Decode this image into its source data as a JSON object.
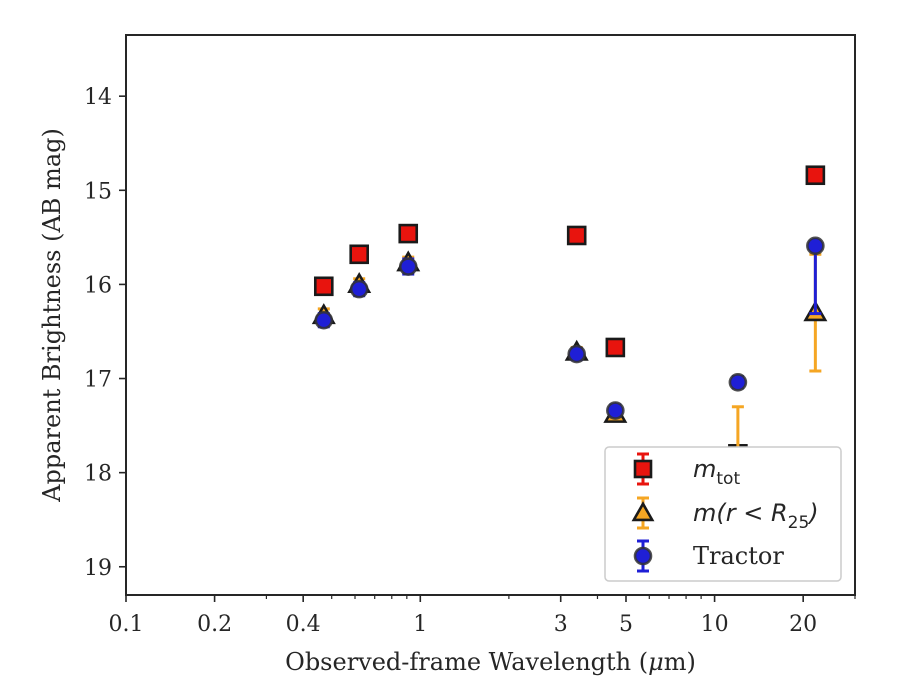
{
  "chart_data": {
    "type": "scatter",
    "xlabel_prefix": "Observed-frame Wavelength (",
    "xlabel_unit_mu": "μ",
    "xlabel_unit_rest": "m)",
    "ylabel": "Apparent Brightness (AB mag)",
    "x_scale": "log",
    "xlim": [
      0.1,
      30
    ],
    "ylim": [
      19.3,
      13.35
    ],
    "y_inverted": true,
    "x_ticks": [
      {
        "value": 0.1,
        "label": "0.1"
      },
      {
        "value": 0.2,
        "label": "0.2"
      },
      {
        "value": 0.4,
        "label": "0.4"
      },
      {
        "value": 1,
        "label": "1"
      },
      {
        "value": 3,
        "label": "3"
      },
      {
        "value": 5,
        "label": "5"
      },
      {
        "value": 10,
        "label": "10"
      },
      {
        "value": 20,
        "label": "20"
      }
    ],
    "y_ticks": [
      {
        "value": 14,
        "label": "14"
      },
      {
        "value": 15,
        "label": "15"
      },
      {
        "value": 16,
        "label": "16"
      },
      {
        "value": 17,
        "label": "17"
      },
      {
        "value": 18,
        "label": "18"
      },
      {
        "value": 19,
        "label": "19"
      }
    ],
    "grid": false,
    "legend_position": "bottom-right",
    "series": [
      {
        "name": "m_tot",
        "legend_main": "m",
        "legend_sub": "tot",
        "marker": "square",
        "color": "#e8140e",
        "edge_color": "#1a1a1a",
        "points": [
          {
            "x": 0.47,
            "y": 16.02,
            "err": 0.06
          },
          {
            "x": 0.62,
            "y": 15.68,
            "err": 0.06
          },
          {
            "x": 0.91,
            "y": 15.46,
            "err": 0.06
          },
          {
            "x": 3.4,
            "y": 15.48,
            "err": 0.05
          },
          {
            "x": 4.6,
            "y": 16.67,
            "err": 0.05
          },
          {
            "x": 12.0,
            "y": 17.8,
            "err": 0.08
          },
          {
            "x": 22.0,
            "y": 14.84,
            "err": 0.08
          }
        ]
      },
      {
        "name": "m(r < R_25)",
        "legend_main": "m(r < R",
        "legend_sub": "25",
        "legend_tail": ")",
        "marker": "triangle",
        "color": "#f5a623",
        "edge_color": "#1a1a1a",
        "points": [
          {
            "x": 0.47,
            "y": 16.33,
            "err": 0.07
          },
          {
            "x": 0.62,
            "y": 16.0,
            "err": 0.06
          },
          {
            "x": 0.91,
            "y": 15.77,
            "err": 0.06
          },
          {
            "x": 3.4,
            "y": 16.72,
            "err": 0.05
          },
          {
            "x": 4.6,
            "y": 17.38,
            "err": 0.06
          },
          {
            "x": 12.0,
            "y": 17.85,
            "err": 0.55
          },
          {
            "x": 22.0,
            "y": 16.3,
            "err": 0.62
          }
        ]
      },
      {
        "name": "Tractor",
        "legend_main": "Tractor",
        "marker": "circle",
        "color": "#1f1fd6",
        "edge_color": "#333333",
        "points": [
          {
            "x": 0.47,
            "y": 16.38,
            "err": 0.07
          },
          {
            "x": 0.62,
            "y": 16.05,
            "err": 0.07
          },
          {
            "x": 0.91,
            "y": 15.81,
            "err": 0.08
          },
          {
            "x": 3.4,
            "y": 16.74,
            "err": 0.06
          },
          {
            "x": 4.6,
            "y": 17.34,
            "err": 0.06
          },
          {
            "x": 12.0,
            "y": 17.04,
            "err": 0.06
          },
          {
            "x": 22.0,
            "y": 15.59,
            "err": 0.72,
            "err_up": 0.04
          }
        ]
      }
    ]
  }
}
